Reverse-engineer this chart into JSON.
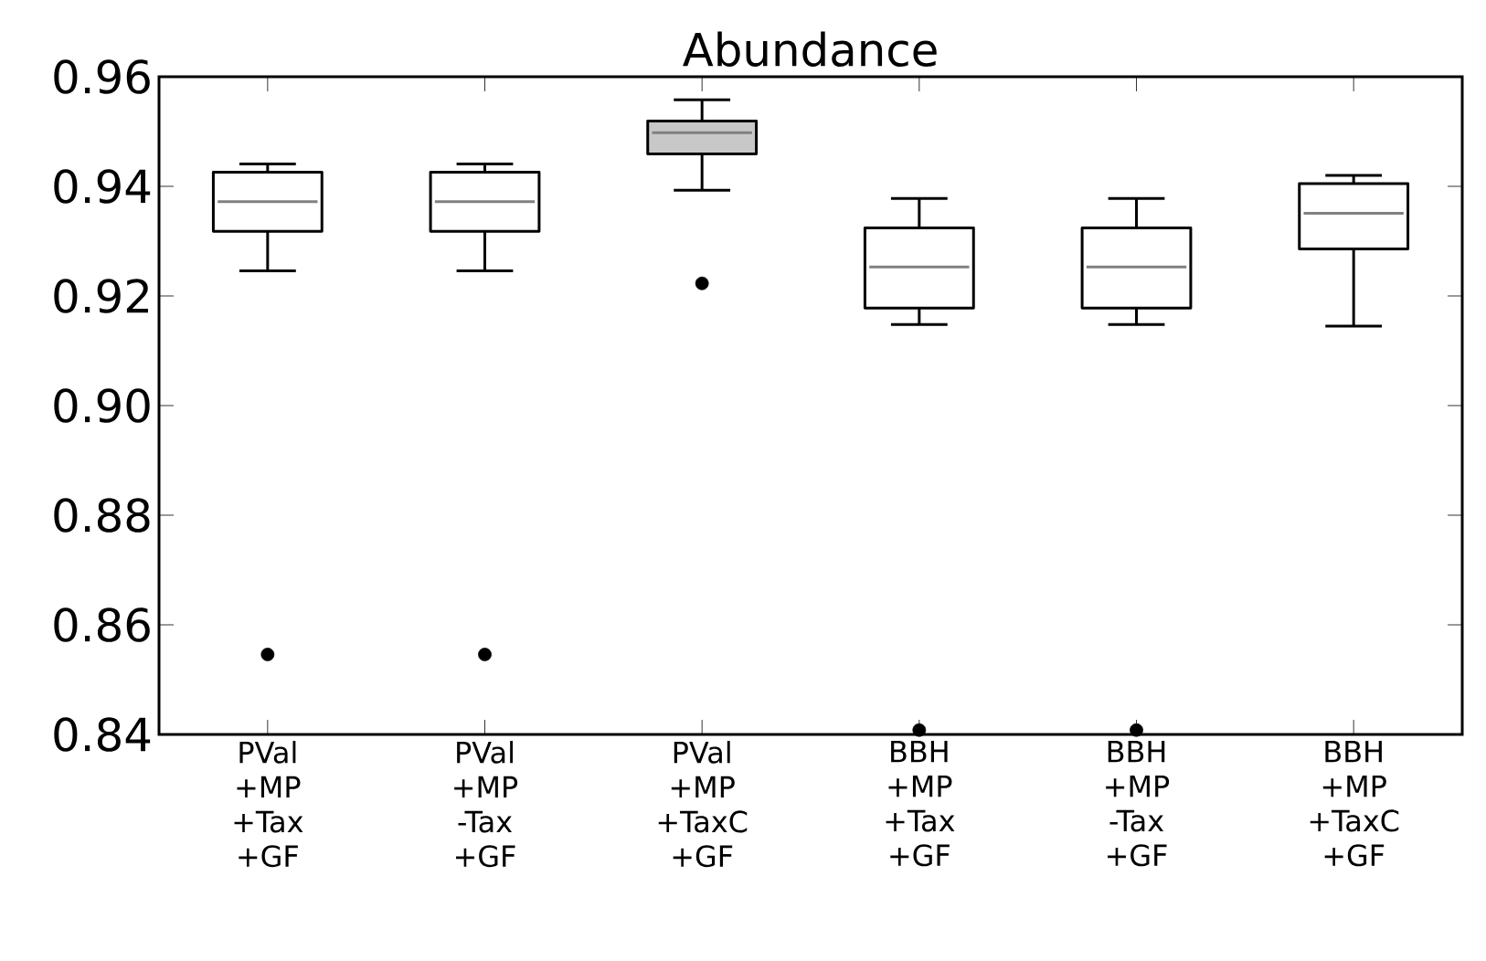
{
  "chart_data": {
    "type": "box",
    "title": "Abundance",
    "categories": [
      "PVal +MP +Tax +GF",
      "PVal +MP -Tax +GF",
      "PVal +MP +TaxC +GF",
      "BBH +MP +Tax +GF",
      "BBH +MP -Tax +GF",
      "BBH +MP +TaxC +GF"
    ],
    "boxes": [
      {
        "low": 0.9246,
        "q1": 0.9318,
        "median": 0.9372,
        "q3": 0.9426,
        "high": 0.9441,
        "outliers": [
          0.8546
        ]
      },
      {
        "low": 0.9246,
        "q1": 0.9318,
        "median": 0.9372,
        "q3": 0.9426,
        "high": 0.9441,
        "outliers": [
          0.8546
        ]
      },
      {
        "low": 0.9393,
        "q1": 0.9459,
        "median": 0.9498,
        "q3": 0.9519,
        "high": 0.9558,
        "outliers": [
          0.9223
        ]
      },
      {
        "low": 0.9148,
        "q1": 0.9178,
        "median": 0.9253,
        "q3": 0.9324,
        "high": 0.9378,
        "outliers": [
          0.8408
        ]
      },
      {
        "low": 0.9148,
        "q1": 0.9178,
        "median": 0.9253,
        "q3": 0.9324,
        "high": 0.9378,
        "outliers": [
          0.8408
        ]
      },
      {
        "low": 0.9145,
        "q1": 0.9286,
        "median": 0.9351,
        "q3": 0.9405,
        "high": 0.942
      }
    ],
    "colors": [
      "#ffffff",
      "#ffffff",
      "#c8c8c8",
      "#ffffff",
      "#ffffff",
      "#ffffff"
    ],
    "ylim": [
      0.84,
      0.96
    ],
    "yticks": [
      {
        "value": 0.84,
        "label": "0.84"
      },
      {
        "value": 0.86,
        "label": "0.86"
      },
      {
        "value": 0.88,
        "label": "0.88"
      },
      {
        "value": 0.9,
        "label": "0.90"
      },
      {
        "value": 0.92,
        "label": "0.92"
      },
      {
        "value": 0.94,
        "label": "0.94"
      },
      {
        "value": 0.96,
        "label": "0.96"
      }
    ],
    "grid": false
  }
}
